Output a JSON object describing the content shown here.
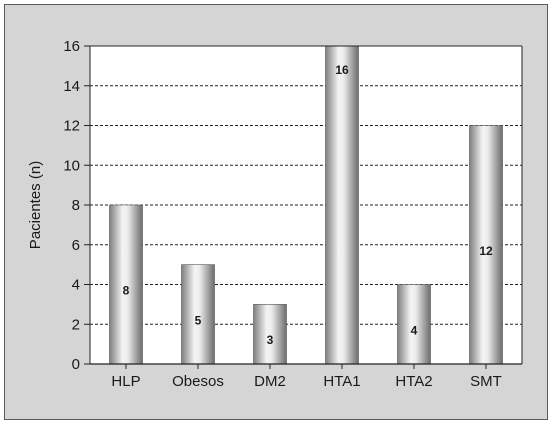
{
  "chart_data": {
    "type": "bar",
    "categories": [
      "HLP",
      "Obesos",
      "DM2",
      "HTA1",
      "HTA2",
      "SMT"
    ],
    "values": [
      8,
      5,
      3,
      16,
      4,
      12
    ],
    "data_labels": [
      "8",
      "5",
      "3",
      "16",
      "4",
      "12"
    ],
    "title": "",
    "xlabel": "",
    "ylabel": "Pacientes (n)",
    "ylim": [
      0,
      16
    ],
    "yticks": [
      0,
      2,
      4,
      6,
      8,
      10,
      12,
      14,
      16
    ],
    "grid": true,
    "legend": "none"
  }
}
